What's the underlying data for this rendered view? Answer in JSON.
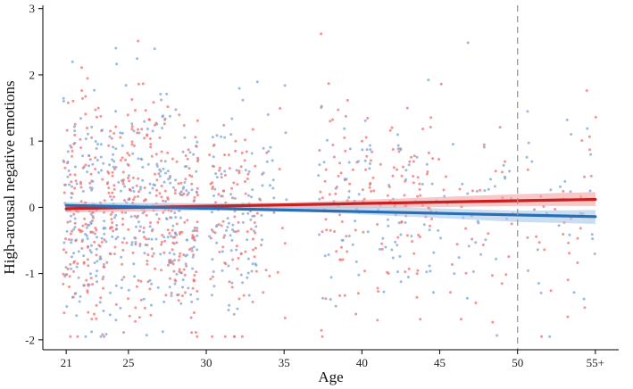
{
  "chart_data": {
    "type": "scatter",
    "title": "",
    "xlabel": "Age",
    "ylabel": "High-arousal negative emotions",
    "x_ticks": [
      21,
      25,
      30,
      35,
      40,
      45,
      50,
      55
    ],
    "x_tick_labels": [
      "21",
      "25",
      "30",
      "35",
      "40",
      "45",
      "50",
      "55+"
    ],
    "y_ticks": [
      -2,
      -1,
      0,
      1,
      2,
      3
    ],
    "y_tick_labels": [
      "-2",
      "-1",
      "0",
      "1",
      "2",
      "3"
    ],
    "xlim": [
      19.5,
      56.5
    ],
    "ylim": [
      -2.15,
      3.05
    ],
    "grid": false,
    "legend": "none",
    "reference_line": {
      "x": 50,
      "style": "dashed",
      "color": "#9a9a9a"
    },
    "series": [
      {
        "color": "#cc1f1f",
        "band_color": "#f2a3a3",
        "fit": {
          "x": [
            21,
            55
          ],
          "y": [
            -0.02,
            0.12
          ]
        },
        "band": {
          "x": [
            21,
            35,
            50,
            55
          ],
          "lower": [
            -0.08,
            -0.03,
            0.02,
            0.02
          ],
          "upper": [
            0.04,
            0.07,
            0.2,
            0.23
          ]
        },
        "point_color": "#f07070"
      },
      {
        "color": "#2a6fb5",
        "band_color": "#a9c8e8",
        "fit": {
          "x": [
            21,
            55
          ],
          "y": [
            0.03,
            -0.14
          ]
        },
        "band": {
          "x": [
            21,
            35,
            50,
            55
          ],
          "lower": [
            -0.02,
            -0.05,
            -0.22,
            -0.25
          ],
          "upper": [
            0.08,
            0.05,
            -0.05,
            -0.04
          ]
        },
        "point_color": "#7aa6d6"
      }
    ],
    "point_clusters": [
      {
        "x": [
          20.8,
          23.5
        ],
        "y_center": -0.1,
        "y_spread": 1.4,
        "count": 260
      },
      {
        "x": [
          23.5,
          27.5
        ],
        "y_center": 0.0,
        "y_spread": 1.45,
        "count": 300
      },
      {
        "x": [
          27.5,
          29.5
        ],
        "y_center": -0.2,
        "y_spread": 1.3,
        "count": 180
      },
      {
        "x": [
          30.2,
          33.3
        ],
        "y_center": -0.1,
        "y_spread": 1.35,
        "count": 170
      },
      {
        "x": [
          33.3,
          35.2
        ],
        "y_center": 0.2,
        "y_spread": 1.2,
        "count": 35
      },
      {
        "x": [
          37.2,
          44.8
        ],
        "y_center": 0.0,
        "y_spread": 1.3,
        "count": 230
      },
      {
        "x": [
          44.8,
          49.8
        ],
        "y_center": 0.0,
        "y_spread": 1.2,
        "count": 70
      },
      {
        "x": [
          50.5,
          55.3
        ],
        "y_center": 0.0,
        "y_spread": 1.3,
        "count": 60
      }
    ]
  }
}
